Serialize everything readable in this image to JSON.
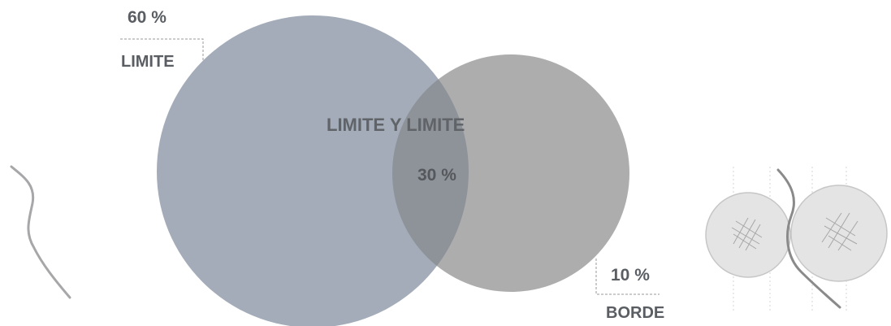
{
  "diagram": {
    "set_a": {
      "percent": "60 %",
      "name": "LIMITE",
      "color": "#a3acb8"
    },
    "set_b": {
      "percent": "10 %",
      "name": "BORDE",
      "color": "#adadad"
    },
    "intersection": {
      "name": "LIMITE Y LIMITE",
      "percent": "30 %",
      "color": "#8e9399"
    },
    "icons": {
      "left": "curved-line-icon",
      "right": "two-circles-with-line-icon"
    }
  }
}
